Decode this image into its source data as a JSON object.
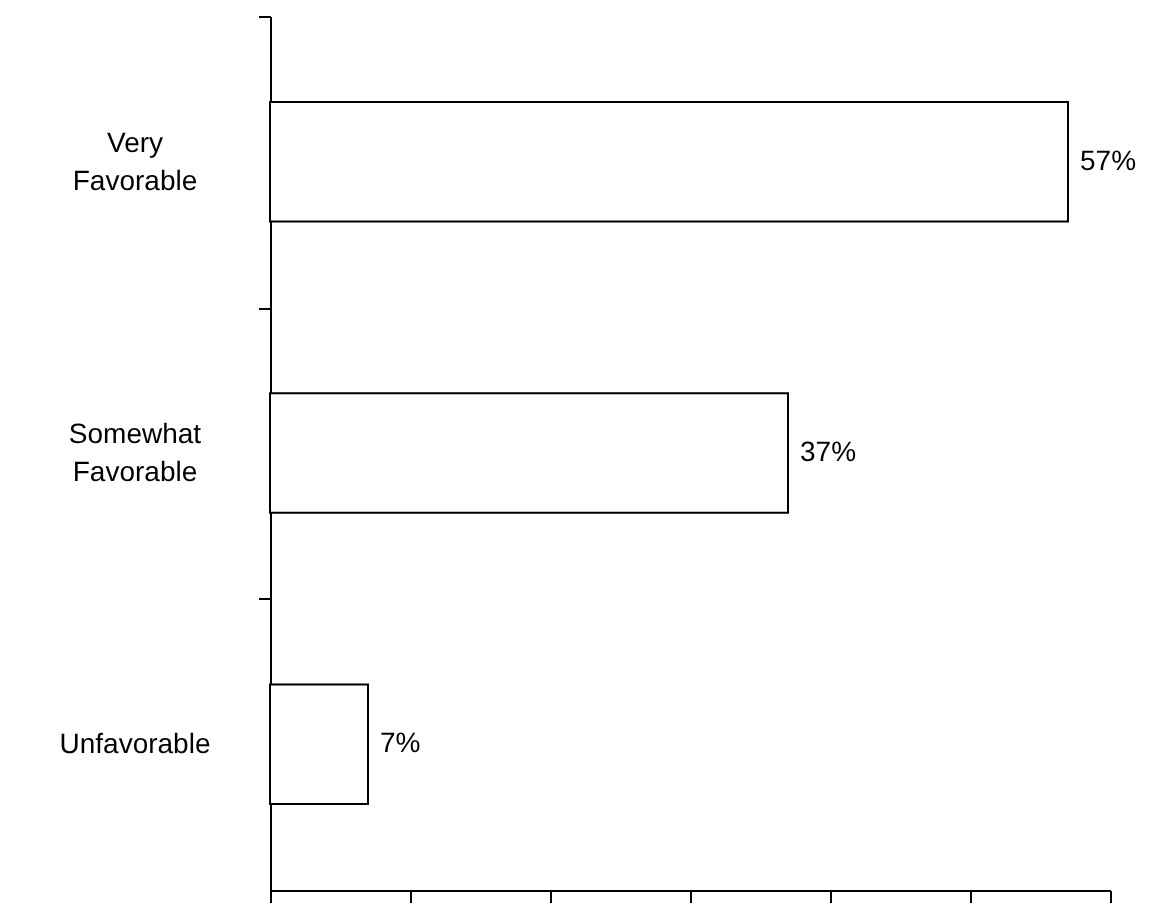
{
  "chart_data": {
    "type": "bar",
    "orientation": "horizontal",
    "categories": [
      "Very Favorable",
      "Somewhat Favorable",
      "Unfavorable"
    ],
    "values": [
      57,
      37,
      7
    ],
    "color": "#ffffff",
    "data_labels": true,
    "value_labels": [
      "57%",
      "37%",
      "7%"
    ],
    "xlim": [
      0,
      60
    ],
    "xticks": [
      {
        "value": 0,
        "label": null
      },
      {
        "value": 10,
        "label": null
      },
      {
        "value": 20,
        "label": null
      },
      {
        "value": 30,
        "label": null
      },
      {
        "value": 40,
        "label": null
      },
      {
        "value": 50,
        "label": null
      },
      {
        "value": 60,
        "label": null
      }
    ],
    "tick_labels": "y",
    "grid": false
  }
}
